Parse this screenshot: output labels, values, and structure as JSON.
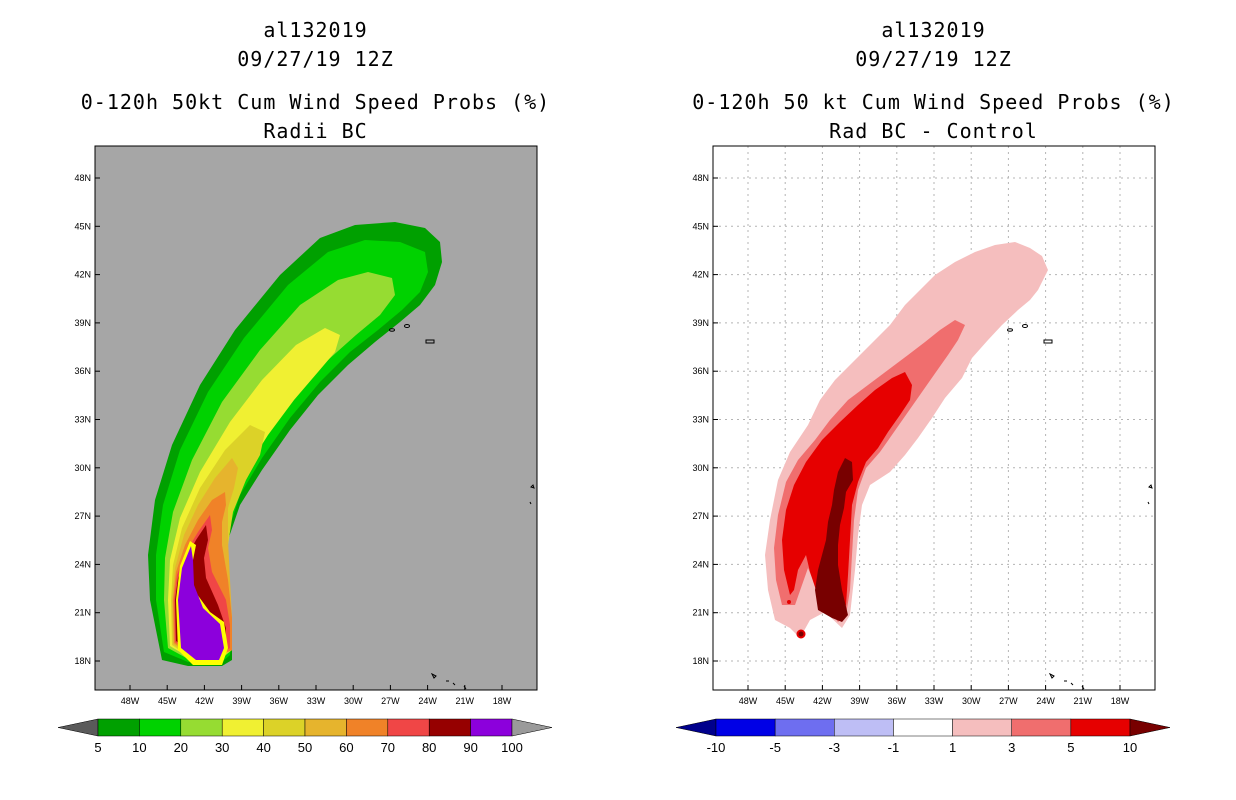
{
  "left": {
    "title_lines": [
      "al132019",
      "09/27/19 12Z",
      "0-120h 50kt Cum Wind Speed Probs (%)",
      "Radii BC"
    ],
    "colorbar": {
      "labels": [
        "5",
        "10",
        "20",
        "30",
        "40",
        "50",
        "60",
        "70",
        "80",
        "90",
        "100"
      ],
      "colors": [
        "#5a5a5a",
        "#00a000",
        "#00d200",
        "#96dc32",
        "#f0f032",
        "#dcd228",
        "#e6b42d",
        "#f08228",
        "#f04646",
        "#960000",
        "#8c00dc",
        "#9a9a9a"
      ]
    },
    "background_color": "#a6a6a6"
  },
  "right": {
    "title_lines": [
      "al132019",
      "09/27/19 12Z",
      "0-120h 50 kt Cum Wind Speed Probs (%)",
      "Rad BC - Control"
    ],
    "colorbar": {
      "labels": [
        "-10",
        "-5",
        "-3",
        "-1",
        "1",
        "3",
        "5",
        "10"
      ],
      "colors": [
        "#00008c",
        "#0000e6",
        "#6e6ef0",
        "#bebef5",
        "#ffffff",
        "#f5bebe",
        "#f06e6e",
        "#e60000",
        "#780000"
      ]
    }
  },
  "axes": {
    "x_ticks": [
      "48W",
      "45W",
      "42W",
      "39W",
      "36W",
      "33W",
      "30W",
      "27W",
      "24W",
      "21W",
      "18W"
    ],
    "y_ticks": [
      "48N",
      "45N",
      "42N",
      "39N",
      "36N",
      "33N",
      "30N",
      "27N",
      "24N",
      "21N",
      "18N"
    ]
  }
}
